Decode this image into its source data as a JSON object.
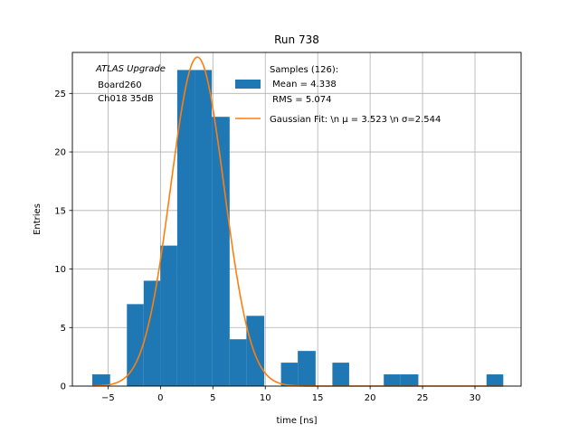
{
  "chart_data": {
    "type": "bar",
    "title": "Run 738",
    "xlabel": "time [ns]",
    "ylabel": "Entries",
    "xlim": [
      -8.4,
      34.4
    ],
    "ylim": [
      0,
      28.5
    ],
    "xticks": [
      -5,
      0,
      5,
      10,
      15,
      20,
      25,
      30
    ],
    "xtick_labels": [
      "−5",
      "0",
      "5",
      "10",
      "15",
      "20",
      "25",
      "30"
    ],
    "yticks": [
      0,
      5,
      10,
      15,
      20,
      25
    ],
    "grid": true,
    "histogram": {
      "name": "Samples (126):\n Mean = 4.338\n RMS = 5.074",
      "color": "#1f77b4",
      "bins": [
        {
          "x0": -6.5,
          "x1": -4.8,
          "count": 1
        },
        {
          "x0": -3.2,
          "x1": -1.6,
          "count": 7
        },
        {
          "x0": -1.6,
          "x1": 0.0,
          "count": 9
        },
        {
          "x0": 0.0,
          "x1": 1.6,
          "count": 12
        },
        {
          "x0": 1.6,
          "x1": 3.3,
          "count": 27
        },
        {
          "x0": 3.3,
          "x1": 4.9,
          "count": 27
        },
        {
          "x0": 4.9,
          "x1": 6.6,
          "count": 23
        },
        {
          "x0": 6.6,
          "x1": 8.2,
          "count": 4
        },
        {
          "x0": 8.2,
          "x1": 9.9,
          "count": 6
        },
        {
          "x0": 11.5,
          "x1": 13.1,
          "count": 2
        },
        {
          "x0": 13.1,
          "x1": 14.8,
          "count": 3
        },
        {
          "x0": 16.4,
          "x1": 18.0,
          "count": 2
        },
        {
          "x0": 21.3,
          "x1": 22.9,
          "count": 1
        },
        {
          "x0": 22.9,
          "x1": 24.6,
          "count": 1
        },
        {
          "x0": 31.1,
          "x1": 32.7,
          "count": 1
        }
      ]
    },
    "fit": {
      "name": "Gaussian Fit: \\n μ = 3.523 \\n σ=2.544",
      "color": "#ff7f0e",
      "amplitude": 28.1,
      "mu": 3.523,
      "sigma": 2.544,
      "x_range": [
        -6.5,
        32.7
      ]
    },
    "annotation": {
      "lines": [
        "ATLAS Upgrade",
        " Board260",
        " Ch018 35dB"
      ]
    },
    "legend": {
      "placement": "top-right",
      "hist_lines": [
        "Samples (126):",
        " Mean = 4.338",
        " RMS = 5.074"
      ],
      "fit_label": "Gaussian Fit: \\n μ = 3.523 \\n σ=2.544"
    }
  }
}
